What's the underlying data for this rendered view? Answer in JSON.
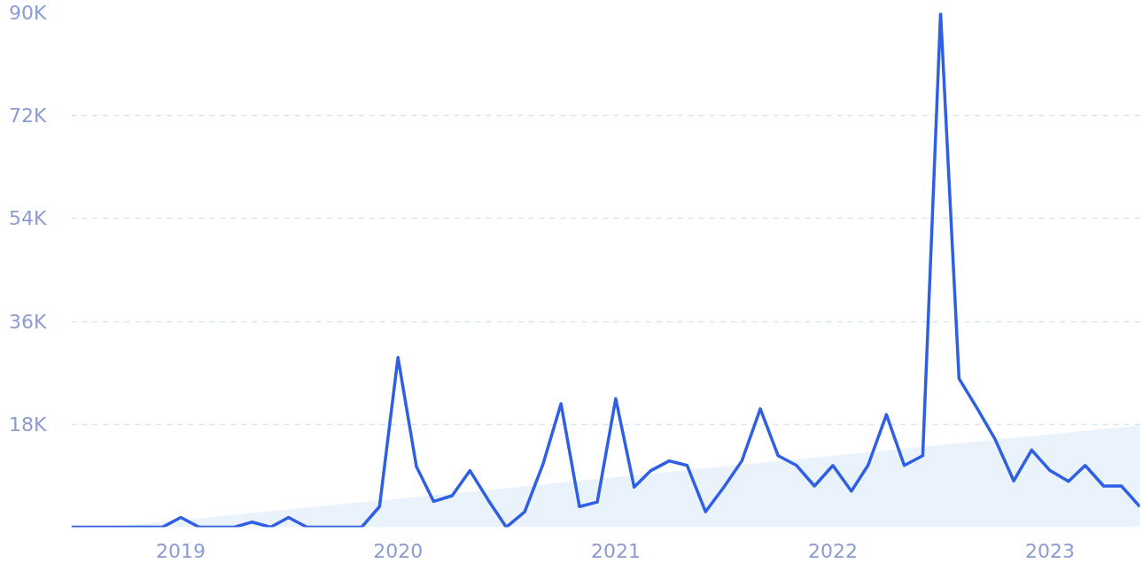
{
  "chart_data": {
    "type": "line",
    "x": [
      "2018-07",
      "2018-08",
      "2018-09",
      "2018-10",
      "2018-11",
      "2018-12",
      "2019-01",
      "2019-02",
      "2019-03",
      "2019-04",
      "2019-05",
      "2019-06",
      "2019-07",
      "2019-08",
      "2019-09",
      "2019-10",
      "2019-11",
      "2019-12",
      "2020-01",
      "2020-02",
      "2020-03",
      "2020-04",
      "2020-05",
      "2020-06",
      "2020-07",
      "2020-08",
      "2020-09",
      "2020-10",
      "2020-11",
      "2020-12",
      "2021-01",
      "2021-02",
      "2021-03",
      "2021-04",
      "2021-05",
      "2021-06",
      "2021-07",
      "2021-08",
      "2021-09",
      "2021-10",
      "2021-11",
      "2021-12",
      "2022-01",
      "2022-02",
      "2022-03",
      "2022-04",
      "2022-05",
      "2022-06",
      "2022-07",
      "2022-08",
      "2022-09",
      "2022-10",
      "2022-11",
      "2022-12",
      "2023-01",
      "2023-02",
      "2023-03",
      "2023-04",
      "2023-05",
      "2023-06"
    ],
    "series": [
      {
        "type": "area",
        "color": "#e8f1fc",
        "x": [
          "2018-09",
          "2023-06"
        ],
        "values": [
          0,
          17800
        ]
      },
      {
        "color": "#2f5fe3",
        "values": [
          0,
          0,
          0,
          0,
          0,
          0,
          1700,
          0,
          0,
          0,
          900,
          0,
          1700,
          0,
          0,
          0,
          0,
          3600,
          29700,
          10600,
          4500,
          5500,
          9900,
          4700,
          0,
          2700,
          11100,
          21600,
          3600,
          4400,
          22500,
          7000,
          9900,
          11600,
          10800,
          2700,
          6900,
          11600,
          20700,
          12500,
          10800,
          7200,
          10800,
          6300,
          10800,
          19700,
          10800,
          12500,
          90000,
          26000,
          20700,
          15300,
          8100,
          13500,
          9900,
          8000,
          10800,
          7200,
          7200,
          3600
        ]
      }
    ],
    "xlim": [
      "2018-07",
      "2023-06"
    ],
    "xticks": [
      {
        "value": "2019-01",
        "label": "2019"
      },
      {
        "value": "2020-01",
        "label": "2020"
      },
      {
        "value": "2021-01",
        "label": "2021"
      },
      {
        "value": "2022-01",
        "label": "2022"
      },
      {
        "value": "2023-01",
        "label": "2023"
      }
    ],
    "ylim": [
      0,
      90000
    ],
    "yticks": [
      {
        "value": 18000,
        "label": "18K"
      },
      {
        "value": 36000,
        "label": "36K"
      },
      {
        "value": 54000,
        "label": "54K"
      },
      {
        "value": 72000,
        "label": "72K"
      },
      {
        "value": 90000,
        "label": "90K"
      }
    ],
    "grid": "y",
    "marker": "none",
    "line_style": "solid"
  }
}
